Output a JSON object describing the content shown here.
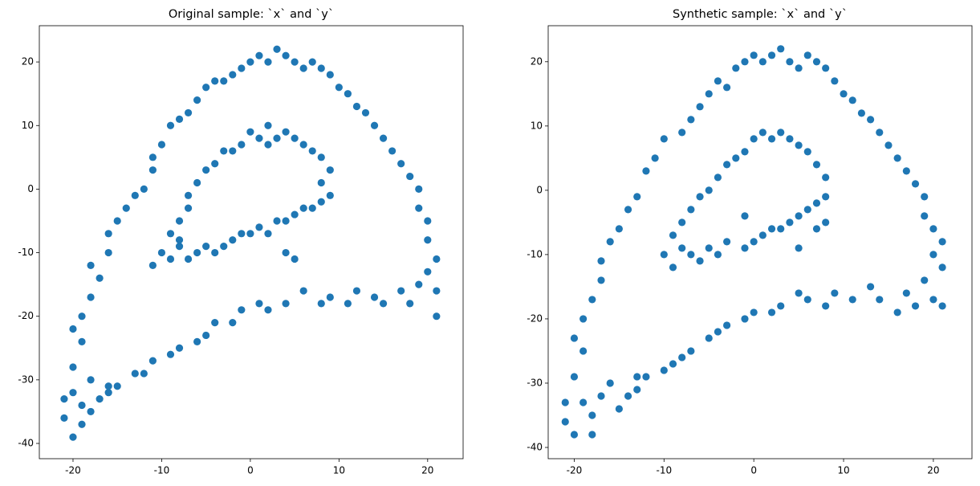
{
  "chart_data": [
    {
      "type": "scatter",
      "title": "Original sample: `x` and `y`",
      "color": "#1f77b4",
      "xlim": [
        -23.8,
        24.0
      ],
      "ylim": [
        -42.4,
        25.7
      ],
      "xticks": [
        -20,
        -10,
        0,
        10,
        20
      ],
      "yticks": [
        -40,
        -30,
        -20,
        -10,
        0,
        10,
        20
      ],
      "x": [
        -21,
        -20,
        -19,
        -20,
        -18,
        -17,
        -16,
        -19,
        -21,
        -18,
        -20,
        -19,
        -20,
        -19,
        -18,
        -17,
        -18,
        -16,
        -16,
        -15,
        -14,
        -13,
        -12,
        -11,
        -11,
        -10,
        -9,
        -8,
        -7,
        -6,
        -5,
        -4,
        -3,
        -2,
        -1,
        0,
        1,
        2,
        3,
        4,
        5,
        6,
        7,
        8,
        9,
        10,
        11,
        12,
        13,
        14,
        15,
        16,
        17,
        18,
        19,
        19,
        20,
        20,
        21,
        20,
        21,
        19,
        18,
        17,
        15,
        14,
        12,
        11,
        9,
        8,
        6,
        4,
        2,
        1,
        -1,
        -2,
        -4,
        -5,
        -6,
        -8,
        -9,
        -11,
        -12,
        -13,
        -15,
        -16,
        21,
        -11,
        -10,
        -9,
        -8,
        -7,
        -6,
        -5,
        -4,
        -3,
        -2,
        -1,
        0,
        1,
        2,
        3,
        4,
        5,
        6,
        7,
        8,
        9,
        8,
        9,
        8,
        7,
        6,
        5,
        4,
        3,
        2,
        1,
        0,
        -1,
        -2,
        -3,
        -4,
        -5,
        -6,
        -7,
        -7,
        -8,
        -9,
        2,
        -8,
        4,
        5
      ],
      "values": [
        -36,
        -39,
        -34,
        -32,
        -35,
        -33,
        -31,
        -37,
        -33,
        -30,
        -28,
        -24,
        -22,
        -20,
        -17,
        -14,
        -12,
        -10,
        -7,
        -5,
        -3,
        -1,
        0,
        3,
        5,
        7,
        10,
        11,
        12,
        14,
        16,
        17,
        17,
        18,
        19,
        20,
        21,
        20,
        22,
        21,
        20,
        19,
        20,
        19,
        18,
        16,
        15,
        13,
        12,
        10,
        8,
        6,
        4,
        2,
        0,
        -3,
        -5,
        -8,
        -11,
        -13,
        -16,
        -15,
        -18,
        -16,
        -18,
        -17,
        -16,
        -18,
        -17,
        -18,
        -16,
        -18,
        -19,
        -18,
        -19,
        -21,
        -21,
        -23,
        -24,
        -25,
        -26,
        -27,
        -29,
        -29,
        -31,
        -32,
        -20,
        -12,
        -10,
        -11,
        -9,
        -11,
        -10,
        -9,
        -10,
        -9,
        -8,
        -7,
        -7,
        -6,
        -7,
        -5,
        -5,
        -4,
        -3,
        -3,
        -2,
        -1,
        1,
        3,
        5,
        6,
        7,
        8,
        9,
        8,
        7,
        8,
        9,
        7,
        6,
        6,
        4,
        3,
        1,
        -1,
        -3,
        -5,
        -7,
        10,
        -8,
        -10,
        -11
      ]
    },
    {
      "type": "scatter",
      "title": "Synthetic sample: `x` and `y`",
      "color": "#1f77b4",
      "xlim": [
        -22.9,
        24.3
      ],
      "ylim": [
        -41.75,
        25.6
      ],
      "xticks": [
        -20,
        -10,
        0,
        10,
        20
      ],
      "yticks": [
        -40,
        -30,
        -20,
        -10,
        0,
        10,
        20
      ],
      "x": [
        -21,
        -20,
        -19,
        -21,
        -18,
        -17,
        -16,
        -18,
        -15,
        -14,
        -13,
        -20,
        -19,
        -20,
        -19,
        -18,
        -17,
        -17,
        -16,
        -15,
        -14,
        -13,
        -12,
        -11,
        -10,
        -8,
        -7,
        -6,
        -5,
        -4,
        -3,
        -2,
        -1,
        0,
        1,
        2,
        3,
        4,
        5,
        6,
        7,
        8,
        9,
        10,
        11,
        12,
        13,
        14,
        15,
        16,
        17,
        18,
        19,
        19,
        20,
        21,
        20,
        21,
        19,
        20,
        18,
        17,
        16,
        14,
        13,
        11,
        9,
        8,
        6,
        5,
        3,
        2,
        0,
        -1,
        -3,
        -4,
        -5,
        -7,
        -8,
        -9,
        -10,
        -12,
        -13,
        21,
        -10,
        -9,
        -8,
        -7,
        -6,
        -5,
        -4,
        -3,
        -1,
        0,
        1,
        2,
        3,
        4,
        5,
        6,
        7,
        8,
        8,
        7,
        6,
        5,
        4,
        3,
        2,
        1,
        0,
        -1,
        -2,
        -3,
        -4,
        -5,
        -6,
        -7,
        -8,
        -9,
        8,
        7,
        5,
        -1
      ],
      "values": [
        -36,
        -38,
        -33,
        -33,
        -35,
        -32,
        -30,
        -38,
        -34,
        -32,
        -29,
        -29,
        -25,
        -23,
        -20,
        -17,
        -14,
        -11,
        -8,
        -6,
        -3,
        -1,
        3,
        5,
        8,
        9,
        11,
        13,
        15,
        17,
        16,
        19,
        20,
        21,
        20,
        21,
        22,
        20,
        19,
        21,
        20,
        19,
        17,
        15,
        14,
        12,
        11,
        9,
        7,
        5,
        3,
        1,
        -1,
        -4,
        -6,
        -8,
        -10,
        -12,
        -14,
        -17,
        -18,
        -16,
        -19,
        -17,
        -15,
        -17,
        -16,
        -18,
        -17,
        -16,
        -18,
        -19,
        -19,
        -20,
        -21,
        -22,
        -23,
        -25,
        -26,
        -27,
        -28,
        -29,
        -31,
        -18,
        -10,
        -12,
        -9,
        -10,
        -11,
        -9,
        -10,
        -8,
        -9,
        -8,
        -7,
        -6,
        -6,
        -5,
        -4,
        -3,
        -2,
        -1,
        2,
        4,
        6,
        7,
        8,
        9,
        8,
        9,
        8,
        6,
        5,
        4,
        2,
        0,
        -1,
        -3,
        -5,
        -7,
        -5,
        -6,
        -9,
        -4
      ]
    }
  ]
}
